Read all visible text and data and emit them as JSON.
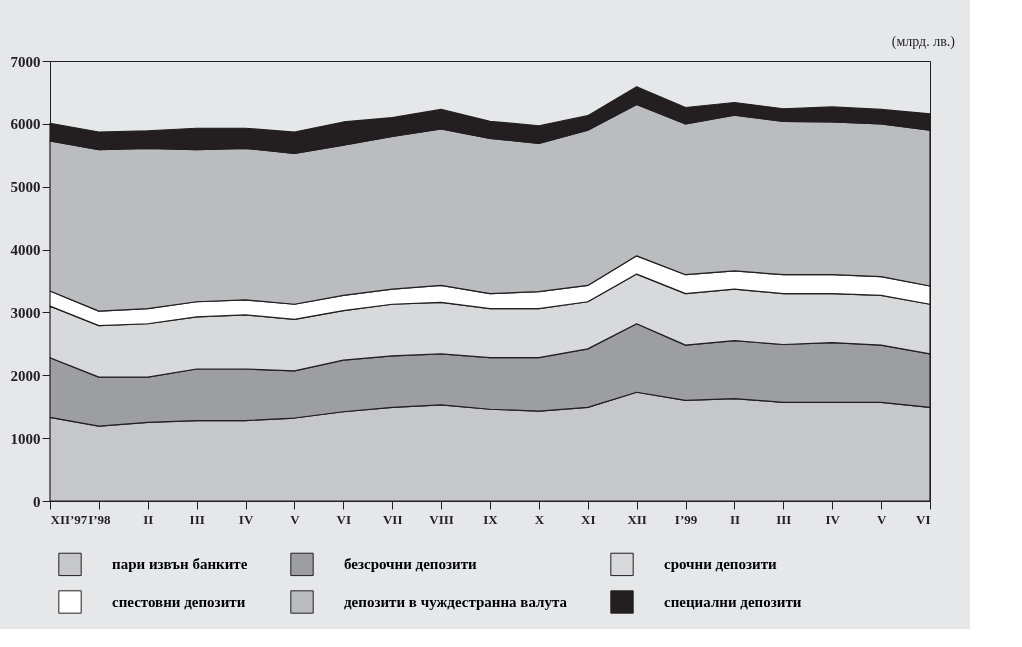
{
  "chart_data": {
    "type": "area",
    "stacked": true,
    "legend": "bottom",
    "grid": false,
    "annotations": [
      "(млрд. лв.)"
    ],
    "categories": [
      "XII’97",
      "I’98",
      "II",
      "III",
      "IV",
      "V",
      "VI",
      "VII",
      "VIII",
      "IX",
      "X",
      "XI",
      "XII",
      "I’99",
      "II",
      "III",
      "IV",
      "V",
      "VI"
    ],
    "ylim": [
      0,
      7000
    ],
    "yticks": [
      0,
      1000,
      2000,
      3000,
      4000,
      5000,
      6000,
      7000
    ],
    "series": [
      {
        "name": "пари извън банките",
        "color": "#c6c7c9",
        "values": [
          1330,
          1190,
          1250,
          1280,
          1280,
          1320,
          1420,
          1490,
          1530,
          1460,
          1430,
          1490,
          1730,
          1600,
          1630,
          1570,
          1570,
          1570,
          1490
        ]
      },
      {
        "name": "безсрочни депозити",
        "color": "#9d9ea2",
        "values": [
          950,
          780,
          720,
          820,
          820,
          750,
          820,
          820,
          810,
          820,
          850,
          930,
          1090,
          880,
          920,
          920,
          950,
          910,
          850
        ]
      },
      {
        "name": "срочни депозити",
        "color": "#d8d9db",
        "values": [
          820,
          820,
          850,
          830,
          860,
          820,
          790,
          820,
          820,
          780,
          780,
          750,
          790,
          820,
          820,
          810,
          780,
          790,
          790
        ]
      },
      {
        "name": "спестовни депозити",
        "color": "#ffffff",
        "values": [
          240,
          230,
          240,
          240,
          240,
          240,
          240,
          240,
          270,
          240,
          270,
          260,
          290,
          300,
          290,
          300,
          300,
          300,
          290
        ]
      },
      {
        "name": "депозити в чуждестранна валута",
        "color": "#bbbcc0",
        "values": [
          2390,
          2570,
          2550,
          2420,
          2410,
          2400,
          2390,
          2430,
          2490,
          2470,
          2360,
          2470,
          2410,
          2400,
          2480,
          2440,
          2430,
          2430,
          2480
        ]
      },
      {
        "name": "специални депозити",
        "color": "#231f20",
        "values": [
          280,
          280,
          280,
          340,
          320,
          340,
          370,
          300,
          310,
          270,
          280,
          230,
          280,
          260,
          200,
          200,
          240,
          230,
          260
        ]
      }
    ]
  }
}
